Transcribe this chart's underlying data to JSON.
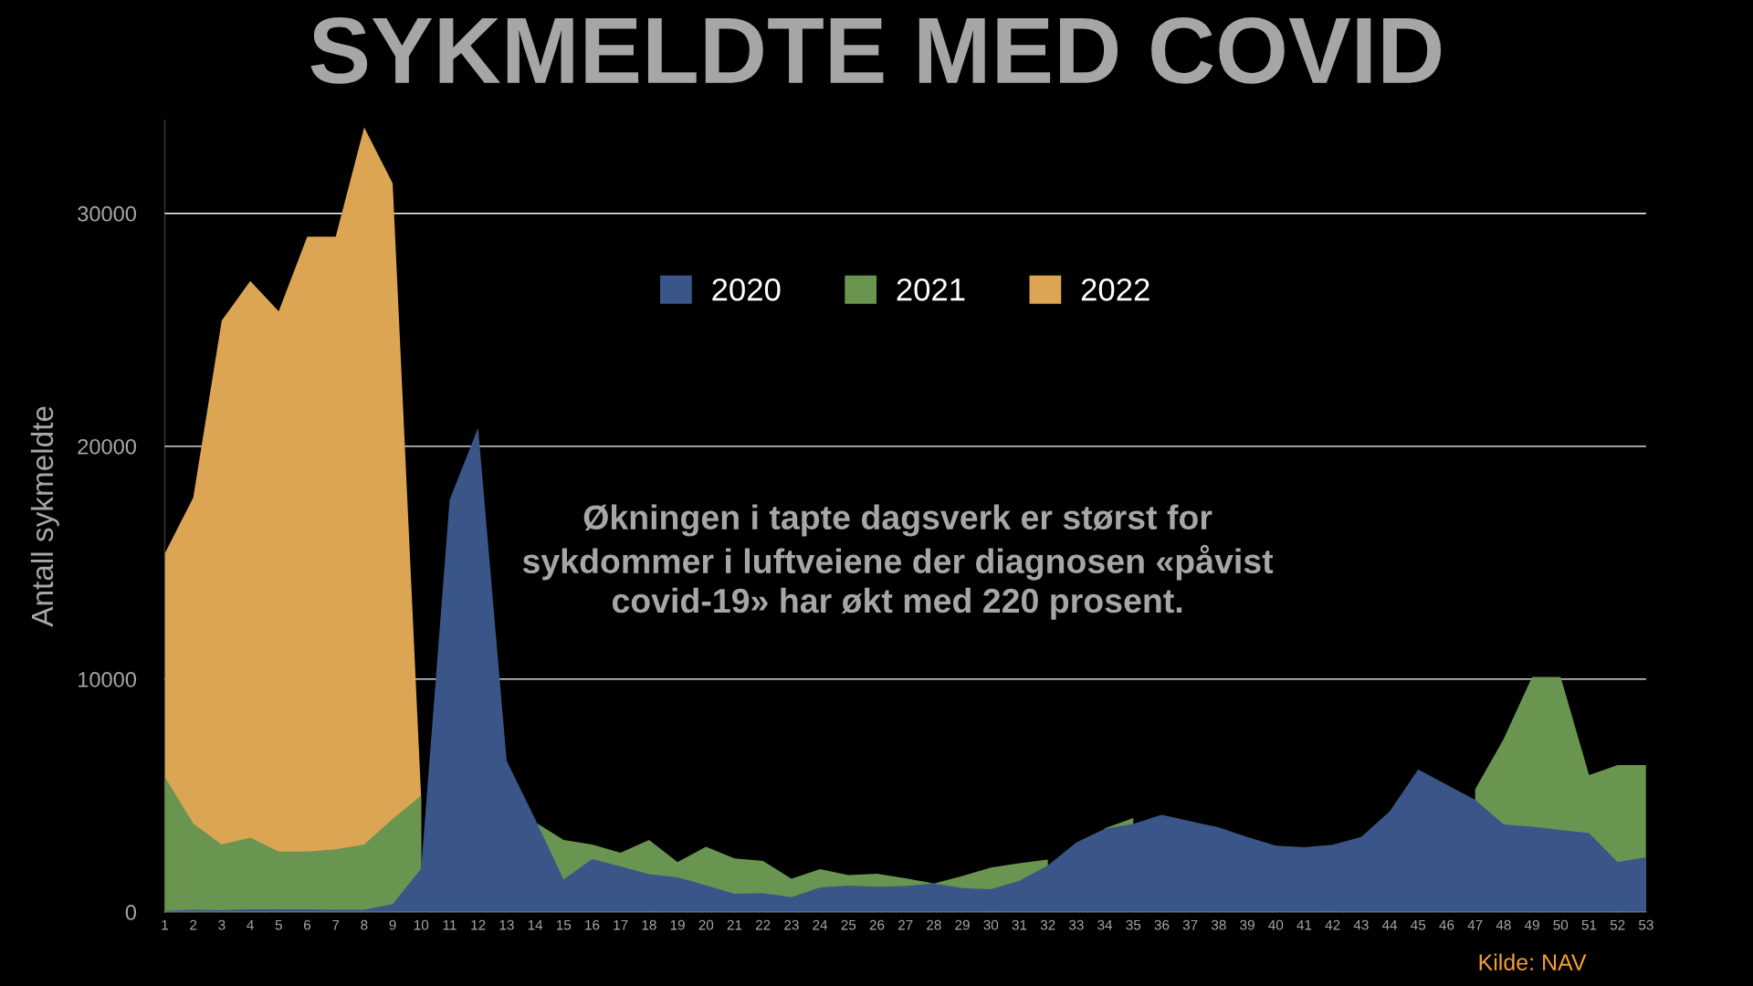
{
  "chart_data": {
    "type": "area",
    "title": "SYKMELDTE MED COVID",
    "ylabel": "Antall sykmeldte",
    "categories": [
      "1",
      "2",
      "3",
      "4",
      "5",
      "6",
      "7",
      "8",
      "9",
      "10",
      "11",
      "12",
      "13",
      "14",
      "15",
      "16",
      "17",
      "18",
      "19",
      "20",
      "21",
      "22",
      "23",
      "24",
      "25",
      "26",
      "27",
      "28",
      "29",
      "30",
      "31",
      "32",
      "33",
      "34",
      "35",
      "36",
      "37",
      "38",
      "39",
      "40",
      "41",
      "42",
      "43",
      "44",
      "45",
      "46",
      "47",
      "48",
      "49",
      "50",
      "51",
      "52",
      "53"
    ],
    "series": [
      {
        "name": "2020",
        "color": "#3a5688",
        "values": [
          50,
          100,
          80,
          120,
          120,
          120,
          100,
          100,
          340,
          1860,
          17700,
          20800,
          6500,
          4000,
          1400,
          2270,
          1960,
          1630,
          1490,
          1150,
          780,
          810,
          640,
          1060,
          1140,
          1090,
          1120,
          1230,
          1030,
          980,
          1340,
          2000,
          2990,
          3580,
          3780,
          4180,
          3900,
          3640,
          3220,
          2850,
          2780,
          2890,
          3220,
          4320,
          6130,
          5470,
          4820,
          3760,
          3670,
          3530,
          3390,
          2150,
          2350
        ]
      },
      {
        "name": "2021",
        "color": "#6a9550",
        "values": [
          5800,
          3800,
          2900,
          3200,
          2600,
          2600,
          2700,
          2900,
          4000,
          5000,
          null,
          null,
          null,
          3860,
          3100,
          2900,
          2550,
          3100,
          2150,
          2800,
          2300,
          2200,
          1430,
          1840,
          1590,
          1650,
          1450,
          1230,
          1550,
          1910,
          2100,
          2250,
          null,
          3600,
          4040,
          null,
          null,
          null,
          null,
          null,
          null,
          null,
          null,
          null,
          null,
          null,
          5270,
          7430,
          10100,
          10100,
          5880,
          6310,
          6310
        ]
      },
      {
        "name": "2022",
        "color": "#dca553",
        "values": [
          15400,
          17800,
          25400,
          27100,
          25800,
          29000,
          29000,
          33700,
          31300,
          4900,
          null,
          null,
          null,
          null,
          null,
          null,
          null,
          null,
          null,
          null,
          null,
          null,
          null,
          null,
          null,
          null,
          null,
          null,
          null,
          null,
          null,
          null,
          null,
          null,
          null,
          null,
          null,
          null,
          null,
          null,
          null,
          null,
          null,
          null,
          null,
          null,
          null,
          null,
          null,
          null,
          null,
          null,
          null
        ]
      }
    ],
    "ylim": [
      0,
      34000
    ],
    "yticks": [
      0,
      10000,
      20000,
      30000
    ],
    "grid": "y",
    "legend": "top",
    "annotations": [
      "Økningen i tapte dagsverk er størst for\nsykdommer i luftveiene der diagnosen «påvist\ncovid-19» har økt med 220 prosent.",
      "Kilde: NAV"
    ]
  }
}
